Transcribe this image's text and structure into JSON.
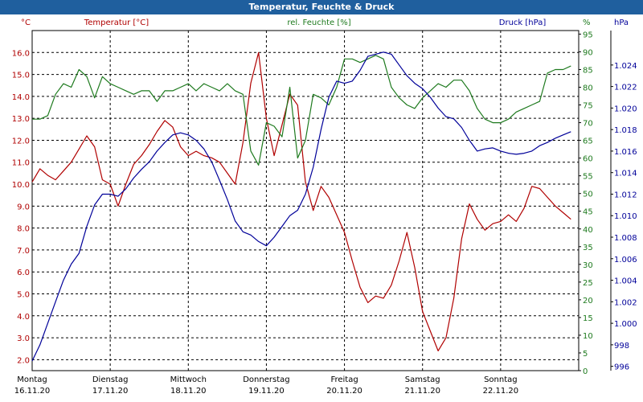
{
  "window": {
    "title": "Temperatur, Feuchte & Druck"
  },
  "colors": {
    "temp": "#b00000",
    "humidity": "#1e7a1e",
    "pressure": "#000099",
    "titlebar": "#1f5f9e"
  },
  "chart_data": {
    "type": "line",
    "title": "Temperatur, Feuchte & Druck",
    "grid": true,
    "x_ticks": [
      {
        "day": "Montag",
        "date": "16.11.20",
        "x": 0
      },
      {
        "day": "Dienstag",
        "date": "17.11.20",
        "x": 1
      },
      {
        "day": "Mittwoch",
        "date": "18.11.20",
        "x": 2
      },
      {
        "day": "Donnerstag",
        "date": "19.11.20",
        "x": 3
      },
      {
        "day": "Freitag",
        "date": "20.11.20",
        "x": 4
      },
      {
        "day": "Samstag",
        "date": "21.11.20",
        "x": 5
      },
      {
        "day": "Sonntag",
        "date": "22.11.20",
        "x": 6
      }
    ],
    "x_range": [
      0,
      7
    ],
    "axes": {
      "left": {
        "label": "Temperatur [°C]",
        "unit": "°C",
        "min": 1.5,
        "max": 17,
        "ticks": [
          "2.0",
          "3.0",
          "4.0",
          "5.0",
          "6.0",
          "7.0",
          "8.0",
          "9.0",
          "10.0",
          "11.0",
          "12.0",
          "13.0",
          "14.0",
          "15.0",
          "16.0"
        ]
      },
      "middle": {
        "label": "rel. Feuchte [%]",
        "unit": "%",
        "min": 0,
        "max": 96,
        "ticks": [
          "0",
          "5",
          "10",
          "15",
          "20",
          "25",
          "30",
          "35",
          "40",
          "45",
          "50",
          "55",
          "60",
          "65",
          "70",
          "75",
          "80",
          "85",
          "90",
          "95"
        ]
      },
      "right": {
        "label": "Druck [hPa]",
        "unit": "hPa",
        "min": 995.6,
        "max": 1027.2,
        "ticks": [
          "996",
          "998",
          "1.000",
          "1.002",
          "1.004",
          "1.006",
          "1.008",
          "1.010",
          "1.012",
          "1.014",
          "1.016",
          "1.018",
          "1.020",
          "1.022",
          "1.024"
        ]
      }
    },
    "series": [
      {
        "name": "Temperatur [°C]",
        "axis": "left",
        "color": "#b00000",
        "x": [
          0,
          0.1,
          0.2,
          0.3,
          0.4,
          0.5,
          0.6,
          0.7,
          0.8,
          0.9,
          1.0,
          1.1,
          1.2,
          1.3,
          1.4,
          1.5,
          1.6,
          1.7,
          1.8,
          1.9,
          2.0,
          2.1,
          2.2,
          2.3,
          2.4,
          2.5,
          2.6,
          2.7,
          2.8,
          2.9,
          3.0,
          3.1,
          3.2,
          3.3,
          3.4,
          3.5,
          3.6,
          3.7,
          3.8,
          3.9,
          4.0,
          4.1,
          4.2,
          4.3,
          4.4,
          4.5,
          4.6,
          4.7,
          4.8,
          4.9,
          5.0,
          5.1,
          5.2,
          5.3,
          5.4,
          5.5,
          5.6,
          5.7,
          5.8,
          5.9,
          6.0,
          6.1,
          6.2,
          6.3,
          6.4,
          6.5,
          6.6,
          6.7,
          6.8,
          6.9
        ],
        "values": [
          10.1,
          10.7,
          10.4,
          10.2,
          10.6,
          11.0,
          11.6,
          12.2,
          11.7,
          10.2,
          10.0,
          9.0,
          10.0,
          10.9,
          11.3,
          11.8,
          12.4,
          12.9,
          12.6,
          11.7,
          11.3,
          11.5,
          11.3,
          11.2,
          11.0,
          10.5,
          10.0,
          11.9,
          14.6,
          16.0,
          13.0,
          11.3,
          12.7,
          14.1,
          13.6,
          10.1,
          8.8,
          9.9,
          9.4,
          8.6,
          7.8,
          6.5,
          5.3,
          4.6,
          4.9,
          4.8,
          5.4,
          6.5,
          7.8,
          6.2,
          4.2,
          3.3,
          2.4,
          3.0,
          4.8,
          7.5,
          9.1,
          8.4,
          7.9,
          8.2,
          8.3,
          8.6,
          8.3,
          8.9,
          9.9,
          9.8,
          9.4,
          9.0,
          8.7,
          8.4
        ]
      },
      {
        "name": "rel. Feuchte [%]",
        "axis": "middle",
        "color": "#1e7a1e",
        "x": [
          0,
          0.1,
          0.2,
          0.3,
          0.4,
          0.5,
          0.6,
          0.7,
          0.8,
          0.9,
          1.0,
          1.1,
          1.2,
          1.3,
          1.4,
          1.5,
          1.6,
          1.7,
          1.8,
          1.9,
          2.0,
          2.1,
          2.2,
          2.3,
          2.4,
          2.5,
          2.6,
          2.7,
          2.8,
          2.9,
          3.0,
          3.1,
          3.2,
          3.3,
          3.4,
          3.5,
          3.6,
          3.7,
          3.8,
          3.9,
          4.0,
          4.1,
          4.2,
          4.3,
          4.4,
          4.5,
          4.6,
          4.7,
          4.8,
          4.9,
          5.0,
          5.1,
          5.2,
          5.3,
          5.4,
          5.5,
          5.6,
          5.7,
          5.8,
          5.9,
          6.0,
          6.1,
          6.2,
          6.3,
          6.4,
          6.5,
          6.6,
          6.7,
          6.8,
          6.9
        ],
        "values": [
          71,
          71,
          72,
          78,
          81,
          80,
          85,
          83,
          77,
          83,
          81,
          80,
          79,
          78,
          79,
          79,
          76,
          79,
          79,
          80,
          81,
          79,
          81,
          80,
          79,
          81,
          79,
          78,
          62,
          58,
          70,
          69,
          66,
          80,
          60,
          65,
          78,
          77,
          75,
          80,
          88,
          88,
          87,
          88,
          89,
          88,
          80,
          77,
          75,
          74,
          77,
          79,
          81,
          80,
          82,
          82,
          79,
          74,
          71,
          70,
          70,
          71,
          73,
          74,
          75,
          76,
          84,
          85,
          85,
          86
        ]
      },
      {
        "name": "Druck [hPa]",
        "axis": "right",
        "color": "#000099",
        "x": [
          0,
          0.1,
          0.2,
          0.3,
          0.4,
          0.5,
          0.6,
          0.7,
          0.8,
          0.9,
          1.0,
          1.1,
          1.2,
          1.3,
          1.4,
          1.5,
          1.6,
          1.7,
          1.8,
          1.9,
          2.0,
          2.1,
          2.2,
          2.3,
          2.4,
          2.5,
          2.6,
          2.7,
          2.8,
          2.9,
          3.0,
          3.1,
          3.2,
          3.3,
          3.4,
          3.5,
          3.6,
          3.7,
          3.8,
          3.9,
          4.0,
          4.1,
          4.2,
          4.3,
          4.4,
          4.5,
          4.6,
          4.7,
          4.8,
          4.9,
          5.0,
          5.1,
          5.2,
          5.3,
          5.4,
          5.5,
          5.6,
          5.7,
          5.8,
          5.9,
          6.0,
          6.1,
          6.2,
          6.3,
          6.4,
          6.5,
          6.6,
          6.7,
          6.8,
          6.9
        ],
        "values": [
          996.5,
          998.0,
          1000.0,
          1002.0,
          1004.0,
          1005.5,
          1006.5,
          1009.0,
          1011.0,
          1012.0,
          1012.0,
          1011.8,
          1012.5,
          1013.5,
          1014.3,
          1015.0,
          1016.0,
          1016.8,
          1017.5,
          1017.7,
          1017.5,
          1017.0,
          1016.2,
          1015.0,
          1013.3,
          1011.5,
          1009.5,
          1008.5,
          1008.2,
          1007.6,
          1007.2,
          1008.0,
          1009.0,
          1010.0,
          1010.5,
          1012.0,
          1014.5,
          1018.0,
          1021.0,
          1022.5,
          1022.3,
          1022.5,
          1023.5,
          1024.8,
          1025.0,
          1025.2,
          1025.0,
          1024.0,
          1023.0,
          1022.3,
          1021.8,
          1021.0,
          1020.0,
          1019.2,
          1019.0,
          1018.2,
          1017.0,
          1016.0,
          1016.2,
          1016.3,
          1016.0,
          1015.8,
          1015.7,
          1015.8,
          1016.0,
          1016.5,
          1016.8,
          1017.2,
          1017.5,
          1017.8
        ]
      }
    ]
  }
}
